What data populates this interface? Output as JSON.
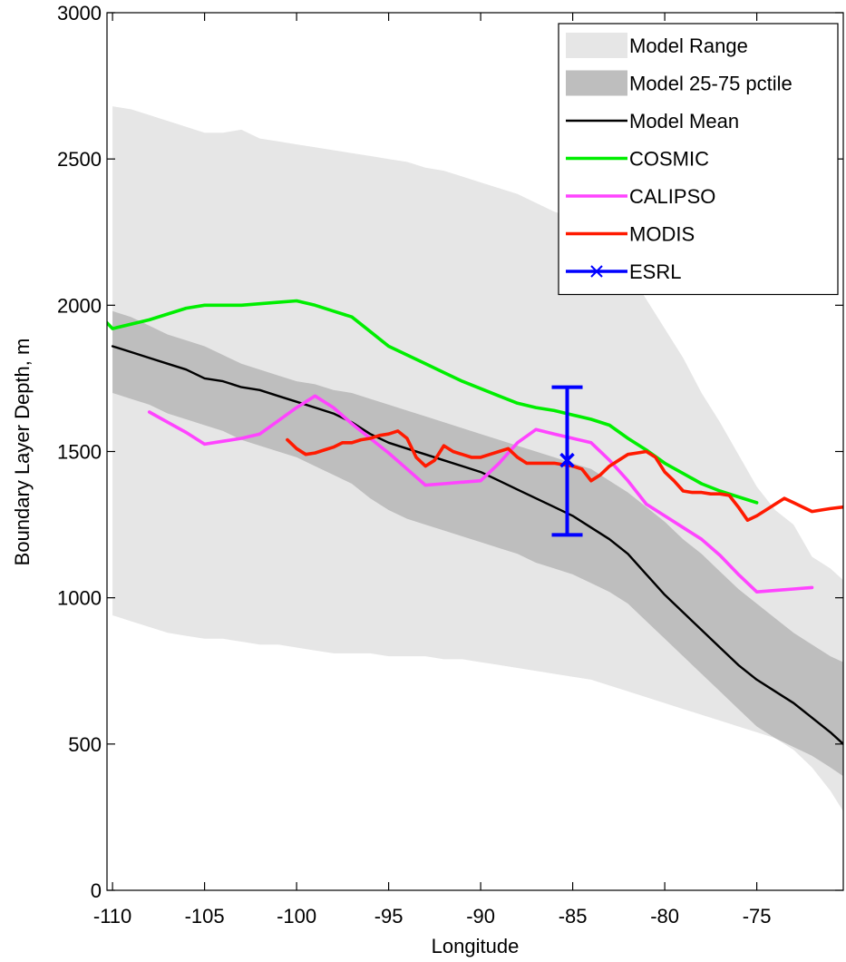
{
  "chart_data": {
    "type": "line",
    "xlabel": "Longitude",
    "ylabel": "Boundary Layer Depth, m",
    "xlim": [
      -110.3,
      -70.3
    ],
    "ylim": [
      0,
      3000
    ],
    "xticks": [
      -110,
      -105,
      -100,
      -95,
      -90,
      -85,
      -80,
      -75
    ],
    "xtick_labels": [
      "-110",
      "-105",
      "-100",
      "-95",
      "-90",
      "-85",
      "-80",
      "-75"
    ],
    "yticks": [
      0,
      500,
      1000,
      1500,
      2000,
      2500,
      3000
    ],
    "ytick_labels": [
      "0",
      "500",
      "1000",
      "1500",
      "2000",
      "2500",
      "3000"
    ],
    "grid": false,
    "legend_position": "top-right",
    "bands": [
      {
        "name": "Model Range",
        "color": "#e6e6e6",
        "x": [
          -110,
          -109,
          -108,
          -107,
          -106,
          -105,
          -104,
          -103,
          -102,
          -101,
          -100,
          -99,
          -98,
          -97,
          -96,
          -95,
          -94,
          -93,
          -92,
          -91,
          -90,
          -89,
          -88,
          -87,
          -86,
          -85,
          -84,
          -83,
          -82,
          -81,
          -80,
          -79,
          -78,
          -77,
          -76,
          -75,
          -74,
          -73,
          -72,
          -71,
          -70.3
        ],
        "upper": [
          2680,
          2670,
          2650,
          2630,
          2610,
          2590,
          2590,
          2600,
          2570,
          2560,
          2550,
          2540,
          2530,
          2520,
          2510,
          2500,
          2490,
          2470,
          2460,
          2440,
          2420,
          2400,
          2380,
          2350,
          2320,
          2300,
          2250,
          2190,
          2120,
          2020,
          1920,
          1820,
          1700,
          1600,
          1490,
          1380,
          1300,
          1250,
          1140,
          1100,
          1060
        ],
        "lower": [
          940,
          920,
          900,
          880,
          870,
          860,
          860,
          850,
          840,
          840,
          830,
          820,
          810,
          810,
          810,
          800,
          800,
          800,
          790,
          790,
          780,
          770,
          760,
          750,
          740,
          730,
          720,
          700,
          680,
          660,
          640,
          620,
          600,
          580,
          560,
          540,
          520,
          480,
          420,
          340,
          270
        ]
      },
      {
        "name": "Model 25-75 pctile",
        "color": "#bebebe",
        "x": [
          -110,
          -109,
          -108,
          -107,
          -106,
          -105,
          -104,
          -103,
          -102,
          -101,
          -100,
          -99,
          -98,
          -97,
          -96,
          -95,
          -94,
          -93,
          -92,
          -91,
          -90,
          -89,
          -88,
          -87,
          -86,
          -85,
          -84,
          -83,
          -82,
          -81,
          -80,
          -79,
          -78,
          -77,
          -76,
          -75,
          -74,
          -73,
          -72,
          -71,
          -70.3
        ],
        "upper": [
          1980,
          1960,
          1930,
          1900,
          1880,
          1860,
          1830,
          1800,
          1780,
          1760,
          1740,
          1730,
          1710,
          1700,
          1680,
          1660,
          1640,
          1620,
          1600,
          1580,
          1560,
          1540,
          1520,
          1500,
          1480,
          1460,
          1440,
          1400,
          1360,
          1310,
          1260,
          1200,
          1150,
          1090,
          1030,
          980,
          930,
          880,
          840,
          800,
          780
        ],
        "lower": [
          1700,
          1680,
          1660,
          1630,
          1610,
          1590,
          1570,
          1540,
          1520,
          1500,
          1480,
          1450,
          1420,
          1390,
          1340,
          1300,
          1270,
          1250,
          1230,
          1210,
          1190,
          1170,
          1150,
          1120,
          1100,
          1080,
          1050,
          1020,
          980,
          920,
          860,
          800,
          740,
          680,
          620,
          560,
          520,
          490,
          460,
          420,
          390
        ]
      }
    ],
    "series": [
      {
        "name": "Model Mean",
        "color": "#000000",
        "x": [
          -110,
          -109,
          -108,
          -107,
          -106,
          -105,
          -104,
          -103,
          -102,
          -101,
          -100,
          -99,
          -98,
          -97,
          -96,
          -95,
          -94,
          -93,
          -92,
          -91,
          -90,
          -89,
          -88,
          -87,
          -86,
          -85,
          -84,
          -83,
          -82,
          -81,
          -80,
          -79,
          -78,
          -77,
          -76,
          -75,
          -74,
          -73,
          -72,
          -71,
          -70.3
        ],
        "y": [
          1860,
          1840,
          1820,
          1800,
          1780,
          1750,
          1740,
          1720,
          1710,
          1690,
          1670,
          1650,
          1630,
          1600,
          1560,
          1530,
          1510,
          1490,
          1470,
          1450,
          1430,
          1400,
          1370,
          1340,
          1310,
          1280,
          1240,
          1200,
          1150,
          1080,
          1010,
          950,
          890,
          830,
          770,
          720,
          680,
          640,
          590,
          540,
          500
        ]
      },
      {
        "name": "COSMIC",
        "color": "#00ee00",
        "x": [
          -110.3,
          -110,
          -108,
          -107,
          -106,
          -105,
          -104,
          -103,
          -102,
          -101,
          -100,
          -99,
          -98,
          -97,
          -96,
          -95,
          -94,
          -93,
          -92,
          -91,
          -90,
          -89,
          -88,
          -87,
          -86,
          -85,
          -84,
          -83,
          -82,
          -81,
          -80,
          -79,
          -78,
          -77,
          -76,
          -75
        ],
        "y": [
          1940,
          1920,
          1950,
          1970,
          1990,
          2000,
          2000,
          2000,
          2005,
          2010,
          2015,
          2000,
          1980,
          1960,
          1910,
          1860,
          1830,
          1800,
          1770,
          1740,
          1715,
          1690,
          1665,
          1650,
          1640,
          1625,
          1610,
          1590,
          1545,
          1505,
          1460,
          1425,
          1390,
          1365,
          1345,
          1325
        ]
      },
      {
        "name": "CALIPSO",
        "color": "#ff44ff",
        "x": [
          -108,
          -107,
          -106,
          -105,
          -104,
          -103,
          -102,
          -101,
          -100,
          -99,
          -98,
          -97,
          -96,
          -95,
          -94,
          -93,
          -92,
          -91,
          -90,
          -89,
          -88,
          -87,
          -86,
          -85,
          -84,
          -83,
          -82,
          -81,
          -80,
          -79,
          -78,
          -77,
          -76,
          -75,
          -74,
          -73,
          -72
        ],
        "y": [
          1635,
          1600,
          1565,
          1525,
          1535,
          1545,
          1560,
          1605,
          1650,
          1690,
          1650,
          1595,
          1545,
          1495,
          1440,
          1385,
          1390,
          1395,
          1400,
          1460,
          1530,
          1575,
          1560,
          1545,
          1530,
          1470,
          1400,
          1320,
          1280,
          1240,
          1200,
          1145,
          1080,
          1020,
          1025,
          1030,
          1035
        ]
      },
      {
        "name": "MODIS",
        "color": "#ff1a00",
        "x": [
          -100.5,
          -100,
          -99.5,
          -99,
          -98.5,
          -98,
          -97.5,
          -97,
          -96.5,
          -96,
          -95.5,
          -95,
          -94.5,
          -94,
          -93.5,
          -93,
          -92.5,
          -92,
          -91.5,
          -91,
          -90.5,
          -90,
          -89.5,
          -89,
          -88.5,
          -88,
          -87.5,
          -87,
          -86.5,
          -86,
          -85.5,
          -85,
          -84.5,
          -84,
          -83.5,
          -83,
          -82.5,
          -82,
          -81.5,
          -81,
          -80.5,
          -80,
          -79.5,
          -79,
          -78.5,
          -78,
          -77.5,
          -77,
          -76.5,
          -76,
          -75.5,
          -75,
          -74.5,
          -74,
          -73.5,
          -73,
          -72.5,
          -72,
          -71.5,
          -71,
          -70.3
        ],
        "y": [
          1540,
          1510,
          1490,
          1495,
          1505,
          1515,
          1530,
          1530,
          1540,
          1545,
          1555,
          1560,
          1570,
          1545,
          1480,
          1450,
          1470,
          1520,
          1500,
          1490,
          1480,
          1480,
          1490,
          1500,
          1510,
          1480,
          1460,
          1460,
          1460,
          1460,
          1455,
          1450,
          1440,
          1400,
          1420,
          1450,
          1470,
          1490,
          1495,
          1500,
          1480,
          1430,
          1400,
          1365,
          1360,
          1360,
          1355,
          1355,
          1350,
          1310,
          1265,
          1280,
          1300,
          1320,
          1340,
          1325,
          1310,
          1295,
          1300,
          1305,
          1310
        ]
      }
    ],
    "errorbar": {
      "name": "ESRL",
      "color": "#0000ff",
      "x": -85.3,
      "y": 1470,
      "low": 1215,
      "high": 1720
    },
    "legend": [
      {
        "label": "Model Range",
        "kind": "patch",
        "color": "#e6e6e6"
      },
      {
        "label": "Model 25-75 pctile",
        "kind": "patch",
        "color": "#bebebe"
      },
      {
        "label": "Model Mean",
        "kind": "line",
        "color": "#000000"
      },
      {
        "label": "COSMIC",
        "kind": "line",
        "color": "#00ee00"
      },
      {
        "label": "CALIPSO",
        "kind": "line",
        "color": "#ff44ff"
      },
      {
        "label": "MODIS",
        "kind": "line",
        "color": "#ff1a00"
      },
      {
        "label": "ESRL",
        "kind": "marker-line",
        "color": "#0000ff"
      }
    ]
  }
}
